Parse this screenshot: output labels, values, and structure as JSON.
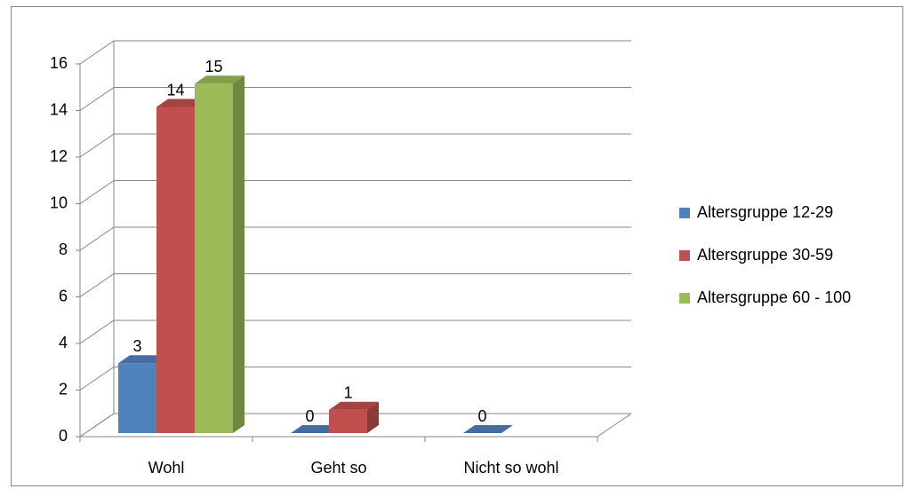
{
  "chart_data": {
    "type": "bar3d",
    "categories": [
      "Wohl",
      "Geht so",
      "Nicht so wohl"
    ],
    "series": [
      {
        "name": "Altersgruppe 12-29",
        "color": "#4f81bd",
        "values": [
          3,
          0,
          0
        ]
      },
      {
        "name": "Altersgruppe 30-59",
        "color": "#c0504d",
        "values": [
          14,
          1,
          null
        ]
      },
      {
        "name": "Altersgruppe 60 - 100",
        "color": "#9bbb59",
        "values": [
          15,
          null,
          null
        ]
      }
    ],
    "ylim": [
      0,
      16
    ],
    "yticks": [
      0,
      2,
      4,
      6,
      8,
      10,
      12,
      14,
      16
    ],
    "grid": true,
    "legend": "right"
  }
}
